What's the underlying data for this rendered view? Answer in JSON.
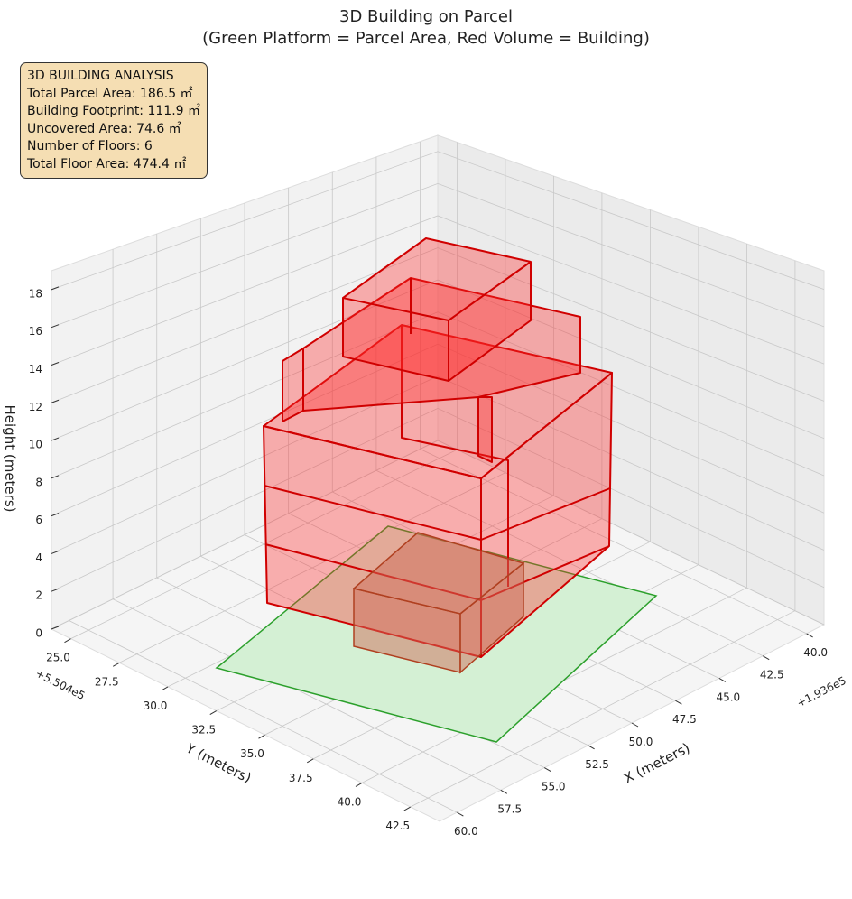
{
  "chart_data": {
    "type": "3d-building",
    "title": "3D Building on Parcel",
    "subtitle": "(Green Platform = Parcel Area, Red Volume = Building)",
    "x_label": "X (meters)",
    "y_label": "Y (meters)",
    "z_label": "Height (meters)",
    "x_offset": "+1.936e5",
    "y_offset": "+5.504e5",
    "xlim": [
      39,
      61
    ],
    "ylim": [
      24,
      44
    ],
    "zlim": [
      0,
      19
    ],
    "xticks": [
      {
        "value": 40,
        "label": "40.0"
      },
      {
        "value": 42.5,
        "label": "42.5"
      },
      {
        "value": 45,
        "label": "45.0"
      },
      {
        "value": 47.5,
        "label": "47.5"
      },
      {
        "value": 50,
        "label": "50.0"
      },
      {
        "value": 52.5,
        "label": "52.5"
      },
      {
        "value": 55,
        "label": "55.0"
      },
      {
        "value": 57.5,
        "label": "57.5"
      },
      {
        "value": 60,
        "label": "60.0"
      }
    ],
    "yticks": [
      {
        "value": 25,
        "label": "25.0"
      },
      {
        "value": 27.5,
        "label": "27.5"
      },
      {
        "value": 30,
        "label": "30.0"
      },
      {
        "value": 32.5,
        "label": "32.5"
      },
      {
        "value": 35,
        "label": "35.0"
      },
      {
        "value": 37.5,
        "label": "37.5"
      },
      {
        "value": 40,
        "label": "40.0"
      },
      {
        "value": 42.5,
        "label": "42.5"
      }
    ],
    "zticks": [
      0,
      2,
      4,
      6,
      8,
      10,
      12,
      14,
      16,
      18
    ],
    "info_box": [
      "3D BUILDING ANALYSIS",
      "Total Parcel Area: 186.5 ㎡",
      "Building Footprint: 111.9 ㎡",
      "Uncovered Area: 74.6 ㎡",
      "Number of Floors: 6",
      "Total Floor Area: 474.4 ㎡"
    ],
    "grid": true
  }
}
